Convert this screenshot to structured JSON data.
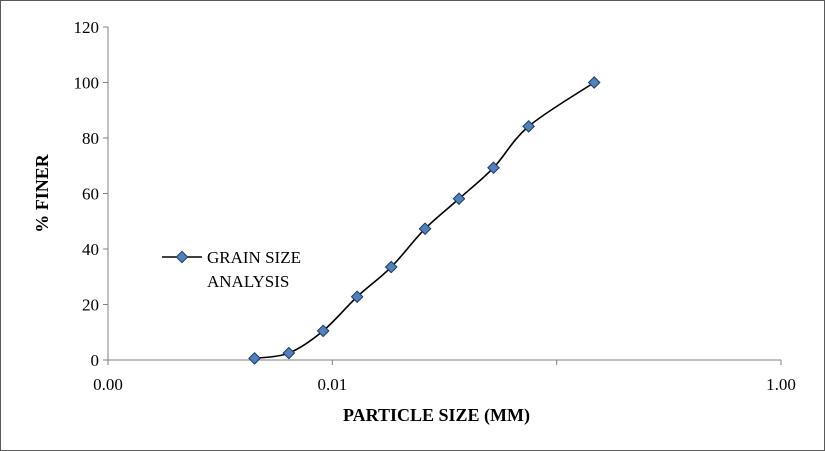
{
  "chart_data": {
    "type": "line",
    "x_scale": "log",
    "xlabel": "PARTICLE SIZE (MM)",
    "ylabel": "% FINER",
    "xlim": [
      0.001,
      1.0
    ],
    "ylim": [
      0,
      120
    ],
    "x_ticks": [
      {
        "value": 0.001,
        "label": "0.00"
      },
      {
        "value": 0.01,
        "label": "0.01"
      },
      {
        "value": 1.0,
        "label": "1.00"
      }
    ],
    "y_ticks": [
      0,
      20,
      40,
      60,
      80,
      100,
      120
    ],
    "grid": false,
    "legend_position": "left",
    "series": [
      {
        "name": "GRAIN SIZE ANALYSIS",
        "name_lines": [
          "GRAIN SIZE",
          "ANALYSIS"
        ],
        "color": "#000000",
        "marker_fill": "#4F81BD",
        "marker_stroke": "#1F3864",
        "x": [
          0.0045,
          0.0064,
          0.0091,
          0.0129,
          0.0183,
          0.0259,
          0.0367,
          0.0523,
          0.075,
          0.147
        ],
        "y": [
          0.6,
          2.5,
          10.5,
          22.8,
          33.5,
          47.3,
          58.1,
          69.3,
          84.2,
          100
        ]
      }
    ]
  }
}
